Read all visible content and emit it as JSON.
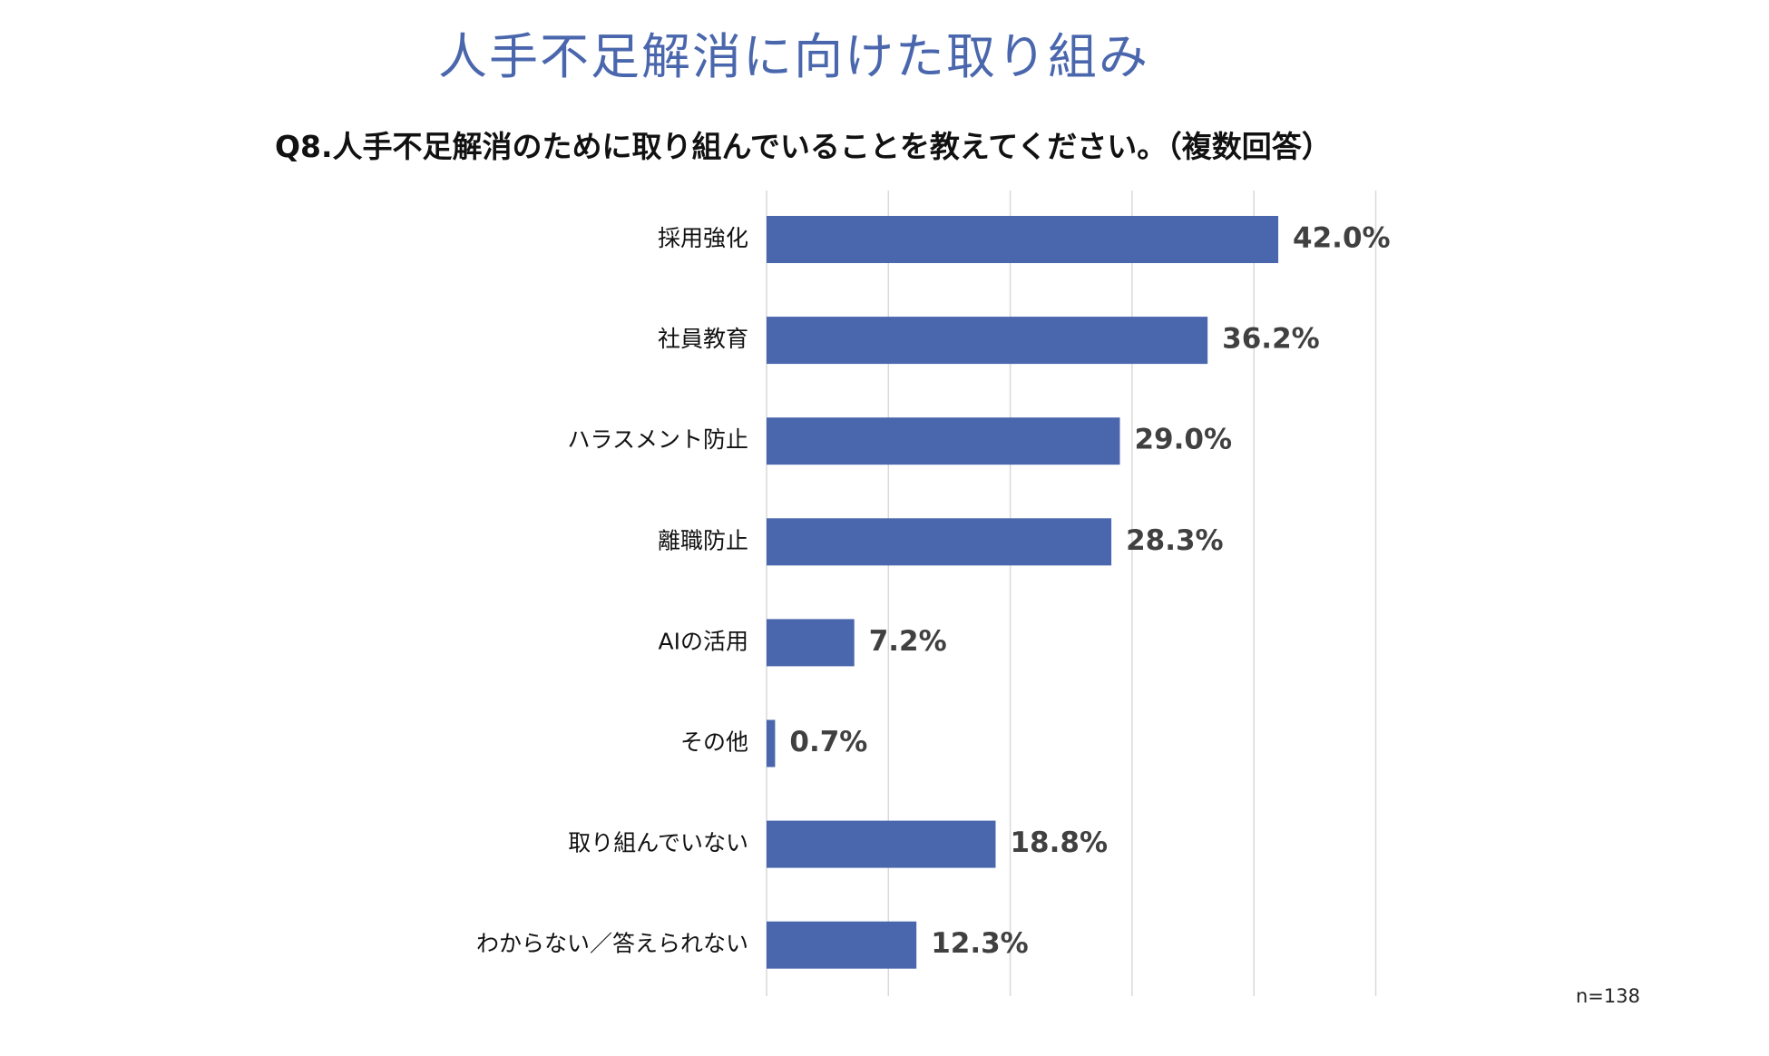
{
  "title": "人手不足解消に向けた取り組み",
  "subtitle": "Q8.人手不足解消のために取り組んでいることを教えてください。（複数回答）",
  "sample_note": "n=138",
  "colors": {
    "bar": "#4a67ad",
    "title": "#4a67ad",
    "grid": "#d9d9d9",
    "label": "#111111",
    "value_label": "#404040"
  },
  "chart_data": {
    "type": "bar",
    "orientation": "horizontal",
    "categories": [
      "採用強化",
      "社員教育",
      "ハラスメント防止",
      "離職防止",
      "AIの活用",
      "その他",
      "取り組んでいない",
      "わからない／答えられない"
    ],
    "values": [
      42.0,
      36.2,
      29.0,
      28.3,
      7.2,
      0.7,
      18.8,
      12.3
    ],
    "value_labels": [
      "42.0%",
      "36.2%",
      "29.0%",
      "28.3%",
      "7.2%",
      "0.7%",
      "18.8%",
      "12.3%"
    ],
    "unit": "%",
    "xlim": [
      0,
      50
    ],
    "gridlines": true,
    "grid_step": 10,
    "legend": false
  }
}
